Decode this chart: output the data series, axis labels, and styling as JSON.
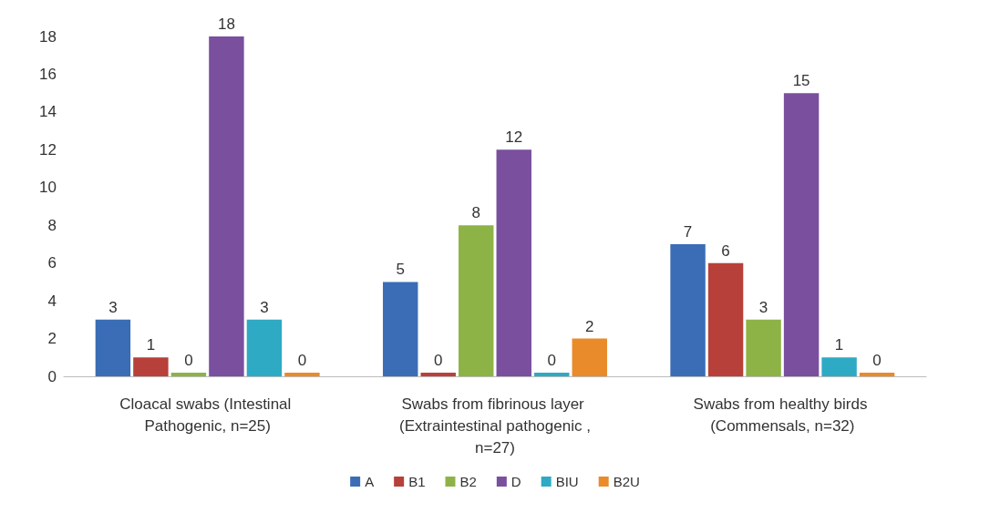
{
  "chart_data": {
    "type": "bar",
    "categories": [
      "Cloacal swabs (Intestinal Pathogenic, n=25)",
      "Swabs from fibrinous layer (Extraintestinal pathogenic ,n=27)",
      "Swabs from healthy birds (Commensals, n=32)"
    ],
    "series": [
      {
        "name": "A",
        "color": "#3a6db5",
        "values": [
          3,
          5,
          7
        ]
      },
      {
        "name": "B1",
        "color": "#b8403a",
        "values": [
          1,
          0,
          6
        ]
      },
      {
        "name": "B2",
        "color": "#8db347",
        "values": [
          0,
          8,
          3
        ]
      },
      {
        "name": "D",
        "color": "#7a4f9e",
        "values": [
          18,
          12,
          15
        ]
      },
      {
        "name": "BIU",
        "color": "#2eaac4",
        "values": [
          3,
          0,
          1
        ]
      },
      {
        "name": "B2U",
        "color": "#e98b2a",
        "values": [
          0,
          2,
          0
        ]
      }
    ],
    "ylim": [
      0,
      18
    ],
    "yticks": [
      0,
      2,
      4,
      6,
      8,
      10,
      12,
      14,
      16,
      18
    ],
    "grid": false,
    "legend": "bottom",
    "data_labels": true
  }
}
